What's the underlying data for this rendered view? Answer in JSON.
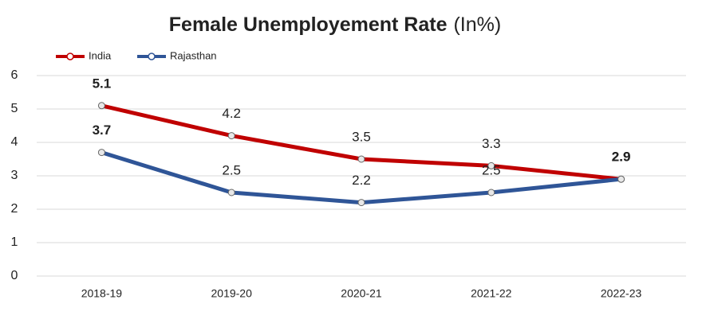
{
  "chart_data": {
    "type": "line",
    "title": "Female Unemployement Rate",
    "title_unit": "(In%)",
    "categories": [
      "2018-19",
      "2019-20",
      "2020-21",
      "2021-22",
      "2022-23"
    ],
    "series": [
      {
        "name": "India",
        "color": "#c00000",
        "values": [
          5.1,
          4.2,
          3.5,
          3.3,
          2.9
        ]
      },
      {
        "name": "Rajasthan",
        "color": "#2f5597",
        "values": [
          3.7,
          2.5,
          2.2,
          2.5,
          2.9
        ]
      }
    ],
    "ylim": [
      0,
      6
    ],
    "yticks": [
      0,
      1,
      2,
      3,
      4,
      5,
      6
    ],
    "grid": true,
    "legend": "top-left"
  }
}
